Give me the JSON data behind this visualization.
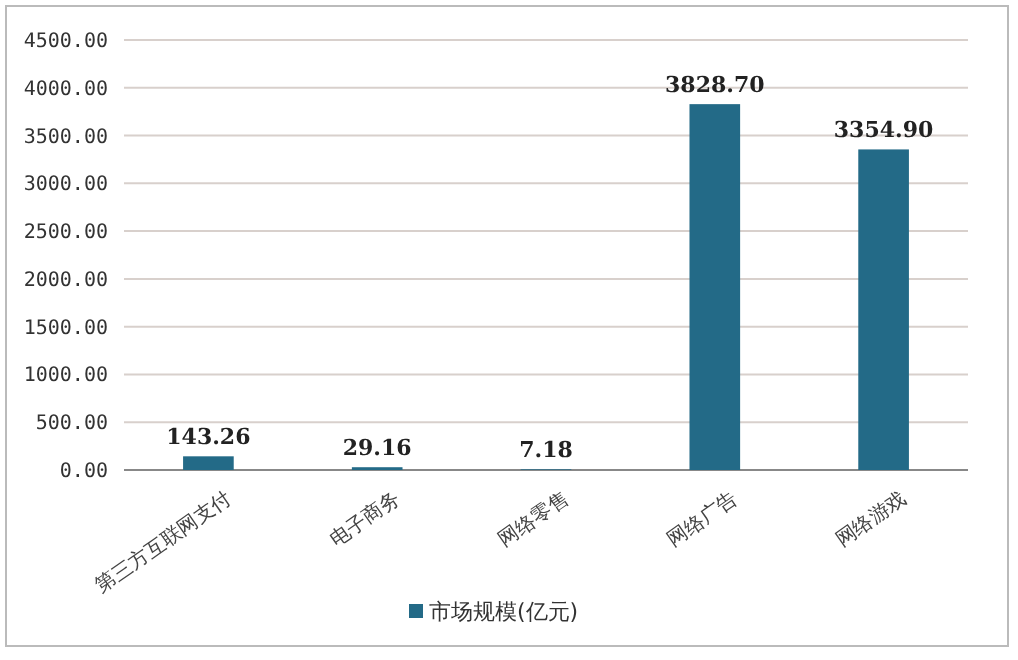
{
  "chart_data": {
    "type": "bar",
    "categories": [
      "第三方互联网支付",
      "电子商务",
      "网络零售",
      "网络广告",
      "网络游戏"
    ],
    "series": [
      {
        "name": "市场规模(亿元)",
        "color": "#236a87",
        "values": [
          143.26,
          29.16,
          7.18,
          3828.7,
          3354.9
        ]
      }
    ],
    "value_labels": [
      "143.26",
      "29.16",
      "7.18",
      "3828.70",
      "3354.90"
    ],
    "ylim": [
      0,
      4500
    ],
    "yticks": [
      {
        "value": 0,
        "label": "0.00"
      },
      {
        "value": 500,
        "label": "500.00"
      },
      {
        "value": 1000,
        "label": "1000.00"
      },
      {
        "value": 1500,
        "label": "1500.00"
      },
      {
        "value": 2000,
        "label": "2000.00"
      },
      {
        "value": 2500,
        "label": "2500.00"
      },
      {
        "value": 3000,
        "label": "3000.00"
      },
      {
        "value": 3500,
        "label": "3500.00"
      },
      {
        "value": 4000,
        "label": "4000.00"
      },
      {
        "value": 4500,
        "label": "4500.00"
      }
    ],
    "grid": "y",
    "legend": "bottom"
  }
}
